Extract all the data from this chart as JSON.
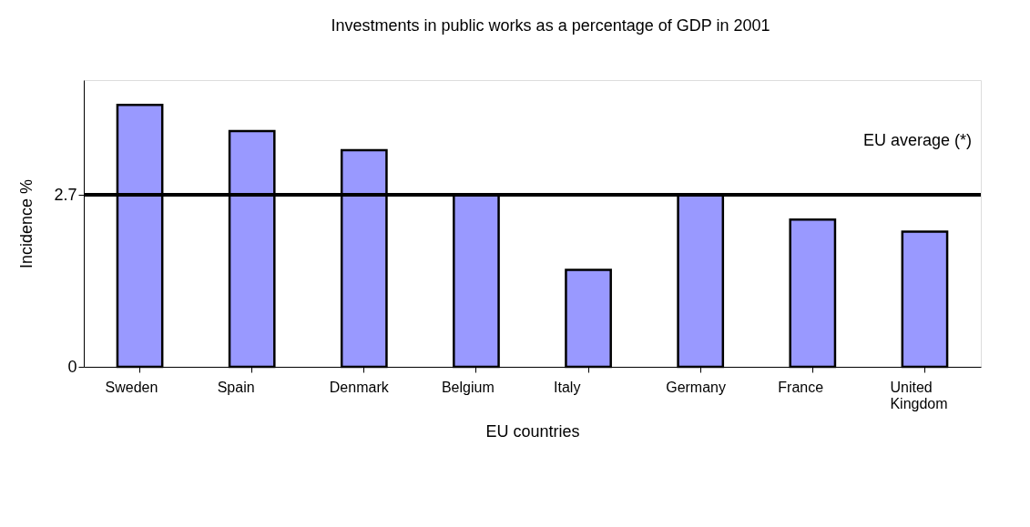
{
  "chart_data": {
    "type": "bar",
    "title": "Investments in public works as a percentage of GDP in 2001",
    "xlabel": "EU countries",
    "ylabel": "Incidence %",
    "categories": [
      "Sweden",
      "Spain",
      "Denmark",
      "Belgium",
      "Italy",
      "Germany",
      "France",
      "United Kingdom"
    ],
    "values": [
      4.11,
      3.7,
      3.4,
      2.7,
      1.52,
      2.7,
      2.31,
      2.12
    ],
    "color": "#9999ff",
    "ylim": [
      0,
      4.5
    ],
    "yticks": [
      0,
      2.7
    ],
    "ref_lines": [
      {
        "axis": "y",
        "value": 2.7,
        "label": "EU average (*)",
        "color": "#000000"
      }
    ]
  }
}
